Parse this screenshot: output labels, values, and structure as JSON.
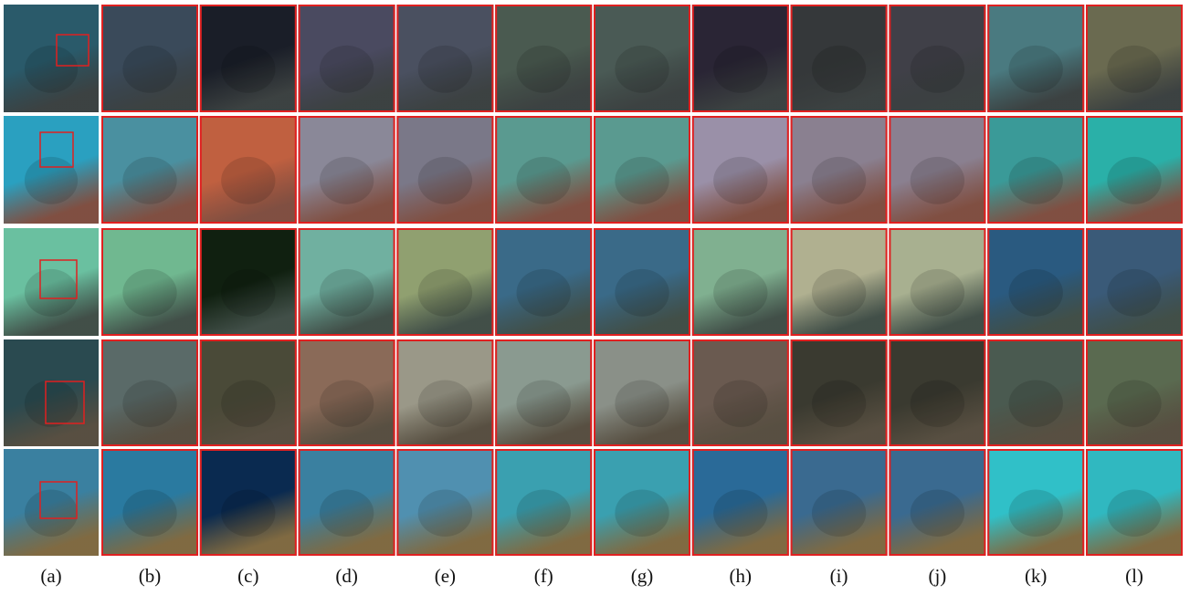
{
  "panel_labels": [
    "(a)",
    "(b)",
    "(c)",
    "(d)",
    "(e)",
    "(f)",
    "(g)",
    "(h)",
    "(i)",
    "(j)",
    "(k)",
    "(l)"
  ]
}
